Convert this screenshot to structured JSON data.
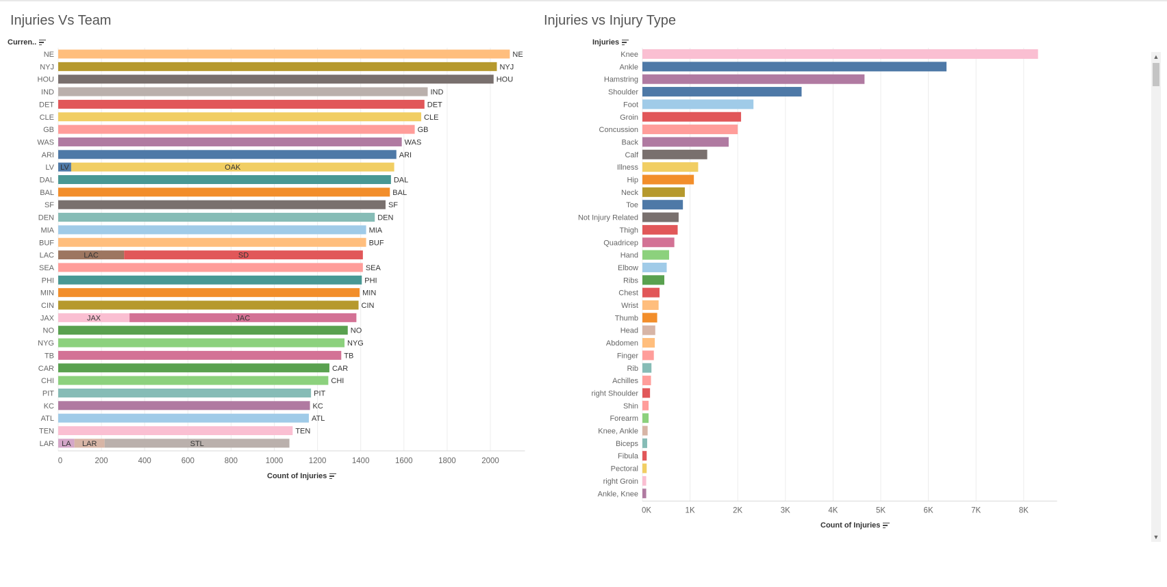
{
  "charts": {
    "left": {
      "title": "Injuries Vs Team",
      "row_header": "Curren..",
      "xlabel": "Count of Injuries"
    },
    "right": {
      "title": "Injuries vs Injury Type",
      "row_header": "Injuries",
      "xlabel": "Count of Injuries"
    }
  },
  "icons": {
    "sort": "sort-descending-icon",
    "scroll_up": "scroll-up-arrow-icon",
    "scroll_down": "scroll-down-arrow-icon"
  },
  "chart_data": [
    {
      "type": "bar",
      "orientation": "horizontal",
      "stacked": true,
      "title": "Injuries Vs Team",
      "ylabel": "Curren..",
      "xlabel": "Count of Injuries",
      "xlim": [
        0,
        2160
      ],
      "xticks": [
        0,
        200,
        400,
        600,
        800,
        1000,
        1200,
        1400,
        1600,
        1800,
        2000
      ],
      "xtick_labels": [
        "0",
        "200",
        "400",
        "600",
        "800",
        "1000",
        "1200",
        "1400",
        "1600",
        "1800",
        "2000"
      ],
      "grid": true,
      "categories": [
        "NE",
        "NYJ",
        "HOU",
        "IND",
        "DET",
        "CLE",
        "GB",
        "WAS",
        "ARI",
        "LV",
        "DAL",
        "BAL",
        "SF",
        "DEN",
        "MIA",
        "BUF",
        "LAC",
        "SEA",
        "PHI",
        "MIN",
        "CIN",
        "JAX",
        "NO",
        "NYG",
        "TB",
        "CAR",
        "CHI",
        "PIT",
        "KC",
        "ATL",
        "TEN",
        "LAR"
      ],
      "rows": [
        {
          "category": "NE",
          "segments": [
            {
              "label": "NE",
              "value": 2090,
              "color": "#FFBE7D"
            }
          ]
        },
        {
          "category": "NYJ",
          "segments": [
            {
              "label": "NYJ",
              "value": 2030,
              "color": "#B6992D"
            }
          ]
        },
        {
          "category": "HOU",
          "segments": [
            {
              "label": "HOU",
              "value": 2015,
              "color": "#79706E"
            }
          ]
        },
        {
          "category": "IND",
          "segments": [
            {
              "label": "IND",
              "value": 1710,
              "color": "#BAB0AC"
            }
          ]
        },
        {
          "category": "DET",
          "segments": [
            {
              "label": "DET",
              "value": 1695,
              "color": "#E15759"
            }
          ]
        },
        {
          "category": "CLE",
          "segments": [
            {
              "label": "CLE",
              "value": 1680,
              "color": "#F1CE63"
            }
          ]
        },
        {
          "category": "GB",
          "segments": [
            {
              "label": "GB",
              "value": 1650,
              "color": "#FF9D9A"
            }
          ]
        },
        {
          "category": "WAS",
          "segments": [
            {
              "label": "WAS",
              "value": 1590,
              "color": "#B07AA1"
            }
          ]
        },
        {
          "category": "ARI",
          "segments": [
            {
              "label": "ARI",
              "value": 1565,
              "color": "#4E79A7"
            }
          ]
        },
        {
          "category": "LV",
          "segments": [
            {
              "label": "LV",
              "value": 60,
              "color": "#4E79A7"
            },
            {
              "label": "OAK",
              "value": 1495,
              "color": "#F1CE63"
            }
          ]
        },
        {
          "category": "DAL",
          "segments": [
            {
              "label": "DAL",
              "value": 1540,
              "color": "#499894"
            }
          ]
        },
        {
          "category": "BAL",
          "segments": [
            {
              "label": "BAL",
              "value": 1535,
              "color": "#F28E2B"
            }
          ]
        },
        {
          "category": "SF",
          "segments": [
            {
              "label": "SF",
              "value": 1515,
              "color": "#79706E"
            }
          ]
        },
        {
          "category": "DEN",
          "segments": [
            {
              "label": "DEN",
              "value": 1465,
              "color": "#86BCB6"
            }
          ]
        },
        {
          "category": "MIA",
          "segments": [
            {
              "label": "MIA",
              "value": 1425,
              "color": "#A0CBE8"
            }
          ]
        },
        {
          "category": "BUF",
          "segments": [
            {
              "label": "BUF",
              "value": 1425,
              "color": "#FFBE7D"
            }
          ]
        },
        {
          "category": "LAC",
          "segments": [
            {
              "label": "LAC",
              "value": 305,
              "color": "#9D7660"
            },
            {
              "label": "SD",
              "value": 1105,
              "color": "#E15759"
            }
          ]
        },
        {
          "category": "SEA",
          "segments": [
            {
              "label": "SEA",
              "value": 1410,
              "color": "#FF9D9A"
            }
          ]
        },
        {
          "category": "PHI",
          "segments": [
            {
              "label": "PHI",
              "value": 1405,
              "color": "#499894"
            }
          ]
        },
        {
          "category": "MIN",
          "segments": [
            {
              "label": "MIN",
              "value": 1395,
              "color": "#F28E2B"
            }
          ]
        },
        {
          "category": "CIN",
          "segments": [
            {
              "label": "CIN",
              "value": 1390,
              "color": "#B6992D"
            }
          ]
        },
        {
          "category": "JAX",
          "segments": [
            {
              "label": "JAX",
              "value": 330,
              "color": "#FABFD2"
            },
            {
              "label": "JAC",
              "value": 1050,
              "color": "#D37295"
            }
          ]
        },
        {
          "category": "NO",
          "segments": [
            {
              "label": "NO",
              "value": 1340,
              "color": "#59A14F"
            }
          ]
        },
        {
          "category": "NYG",
          "segments": [
            {
              "label": "NYG",
              "value": 1325,
              "color": "#8CD17D"
            }
          ]
        },
        {
          "category": "TB",
          "segments": [
            {
              "label": "TB",
              "value": 1310,
              "color": "#D37295"
            }
          ]
        },
        {
          "category": "CAR",
          "segments": [
            {
              "label": "CAR",
              "value": 1255,
              "color": "#59A14F"
            }
          ]
        },
        {
          "category": "CHI",
          "segments": [
            {
              "label": "CHI",
              "value": 1250,
              "color": "#8CD17D"
            }
          ]
        },
        {
          "category": "PIT",
          "segments": [
            {
              "label": "PIT",
              "value": 1170,
              "color": "#86BCB6"
            }
          ]
        },
        {
          "category": "KC",
          "segments": [
            {
              "label": "KC",
              "value": 1165,
              "color": "#B07AA1"
            }
          ]
        },
        {
          "category": "ATL",
          "segments": [
            {
              "label": "ATL",
              "value": 1160,
              "color": "#A0CBE8"
            }
          ]
        },
        {
          "category": "TEN",
          "segments": [
            {
              "label": "TEN",
              "value": 1085,
              "color": "#FABFD2"
            }
          ]
        },
        {
          "category": "LAR",
          "segments": [
            {
              "label": "LA",
              "value": 75,
              "color": "#D4A6C8"
            },
            {
              "label": "LAR",
              "value": 140,
              "color": "#D7B5A6"
            },
            {
              "label": "STL",
              "value": 855,
              "color": "#BAB0AC"
            }
          ]
        }
      ]
    },
    {
      "type": "bar",
      "orientation": "horizontal",
      "title": "Injuries vs Injury Type",
      "ylabel": "Injuries",
      "xlabel": "Count of Injuries",
      "xlim": [
        0,
        8700
      ],
      "xticks": [
        0,
        1000,
        2000,
        3000,
        4000,
        5000,
        6000,
        7000,
        8000
      ],
      "xtick_labels": [
        "0K",
        "1K",
        "2K",
        "3K",
        "4K",
        "5K",
        "6K",
        "7K",
        "8K"
      ],
      "grid": true,
      "categories": [
        "Knee",
        "Ankle",
        "Hamstring",
        "Shoulder",
        "Foot",
        "Groin",
        "Concussion",
        "Back",
        "Calf",
        "Illness",
        "Hip",
        "Neck",
        "Toe",
        "Not Injury Related",
        "Thigh",
        "Quadricep",
        "Hand",
        "Elbow",
        "Ribs",
        "Chest",
        "Wrist",
        "Thumb",
        "Head",
        "Abdomen",
        "Finger",
        "Rib",
        "Achilles",
        "right Shoulder",
        "Shin",
        "Forearm",
        "Knee, Ankle",
        "Biceps",
        "Fibula",
        "Pectoral",
        "right Groin",
        "Ankle, Knee"
      ],
      "values": [
        8300,
        6380,
        4660,
        3340,
        2330,
        2070,
        2000,
        1810,
        1360,
        1170,
        1080,
        890,
        850,
        760,
        740,
        670,
        560,
        510,
        460,
        360,
        340,
        310,
        270,
        260,
        240,
        190,
        180,
        160,
        130,
        130,
        110,
        100,
        90,
        90,
        80,
        80
      ],
      "colors": [
        "#FABFD2",
        "#4E79A7",
        "#B07AA1",
        "#4E79A7",
        "#A0CBE8",
        "#E15759",
        "#FF9D9A",
        "#B07AA1",
        "#79706E",
        "#F1CE63",
        "#F28E2B",
        "#B6992D",
        "#4E79A7",
        "#79706E",
        "#E15759",
        "#D37295",
        "#8CD17D",
        "#A0CBE8",
        "#59A14F",
        "#E15759",
        "#FFBE7D",
        "#F28E2B",
        "#D7B5A6",
        "#FFBE7D",
        "#FF9D9A",
        "#86BCB6",
        "#FF9D9A",
        "#E15759",
        "#FF9D9A",
        "#8CD17D",
        "#D7B5A6",
        "#86BCB6",
        "#E15759",
        "#F1CE63",
        "#FABFD2",
        "#B07AA1"
      ]
    }
  ]
}
